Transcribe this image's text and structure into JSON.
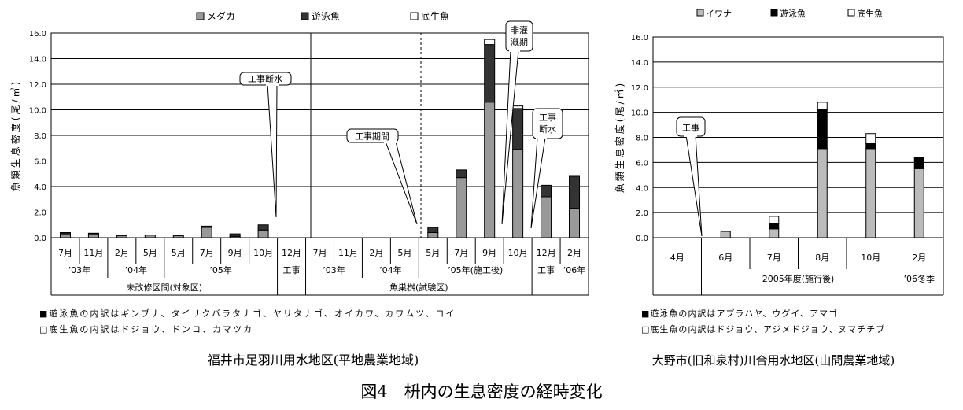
{
  "figure_title": "図4　枡内の生息密度の経時変化",
  "colors": {
    "medaka": "#999999",
    "yuei": "#333333",
    "teisei": "#ffffff",
    "iwana": "#bbbbbb",
    "black": "#000000"
  },
  "chart_data": [
    {
      "type": "bar",
      "stacked": true,
      "caption": "福井市足羽川用水地区(平地農業地域)",
      "ylabel": "魚類生息密度(尾/㎡)",
      "ylim": [
        0,
        16
      ],
      "yticks": [
        "0.0",
        "2.0",
        "4.0",
        "6.0",
        "8.0",
        "10.0",
        "12.0",
        "14.0",
        "16.0"
      ],
      "grid": true,
      "legend_position": "top",
      "categories": [
        "7月",
        "11月",
        "2月",
        "5月",
        "5月",
        "7月",
        "9月",
        "10月",
        "12月",
        "7月",
        "11月",
        "2月",
        "5月",
        "5月",
        "7月",
        "9月",
        "10月",
        "12月",
        "2月"
      ],
      "year_labels": [
        "’03年",
        "’04年",
        "’05年",
        "工事",
        "’03年",
        "’04年",
        "’05年(施工後)",
        "工事",
        "’06年"
      ],
      "group_labels": [
        "未改修区間(対象区)",
        "魚巣桝(試験区)"
      ],
      "series": [
        {
          "name": "メダカ",
          "values": [
            0.3,
            0.3,
            0.15,
            0.2,
            0.15,
            0.8,
            0.1,
            0.6,
            0,
            0,
            0,
            0,
            0,
            0.4,
            4.7,
            10.6,
            6.9,
            3.2,
            2.3
          ]
        },
        {
          "name": "遊泳魚",
          "values": [
            0.1,
            0,
            0,
            0,
            0,
            0.1,
            0.2,
            0.4,
            0,
            0,
            0,
            0,
            0,
            0.4,
            0.6,
            4.5,
            3.2,
            0.9,
            2.5
          ]
        },
        {
          "name": "底生魚",
          "values": [
            0,
            0.05,
            0,
            0,
            0,
            0,
            0,
            0,
            0,
            0,
            0,
            0,
            0,
            0,
            0,
            0.4,
            0.2,
            0,
            0
          ]
        }
      ],
      "annotations": [
        "工事断水",
        "工事期間",
        "非灌漑期",
        "工事断水"
      ],
      "footnotes": [
        "■遊泳魚の内訳はギンブナ、タイリクバラタナゴ、ヤリタナゴ、オイカワ、カワムツ、コイ",
        "□底生魚の内訳はドジョウ、ドンコ、カマツカ"
      ]
    },
    {
      "type": "bar",
      "stacked": true,
      "caption": "大野市(旧和泉村)川合用水地区(山間農業地域)",
      "ylabel": "魚類生息密度(尾/㎡)",
      "ylim": [
        0,
        16
      ],
      "yticks": [
        "0.0",
        "2.0",
        "4.0",
        "6.0",
        "8.0",
        "10.0",
        "12.0",
        "14.0",
        "16.0"
      ],
      "grid": true,
      "legend_position": "top",
      "categories": [
        "4月",
        "6月",
        "7月",
        "8月",
        "10月",
        "2月"
      ],
      "year_labels": [
        "2005年度(施行後)",
        "’06冬季"
      ],
      "series": [
        {
          "name": "イワナ",
          "values": [
            0,
            0.5,
            0.7,
            7.1,
            7.1,
            5.5
          ]
        },
        {
          "name": "遊泳魚",
          "values": [
            0,
            0,
            0.4,
            3.1,
            0.4,
            0.9
          ]
        },
        {
          "name": "底生魚",
          "values": [
            0,
            0,
            0.6,
            0.6,
            0.8,
            0
          ]
        }
      ],
      "annotations": [
        "工事"
      ],
      "footnotes": [
        "■遊泳魚の内訳はアブラハヤ、ウグイ、アマゴ",
        "□底生魚の内訳はドジョウ、アジメドジョウ、ヌマチチブ"
      ]
    }
  ]
}
